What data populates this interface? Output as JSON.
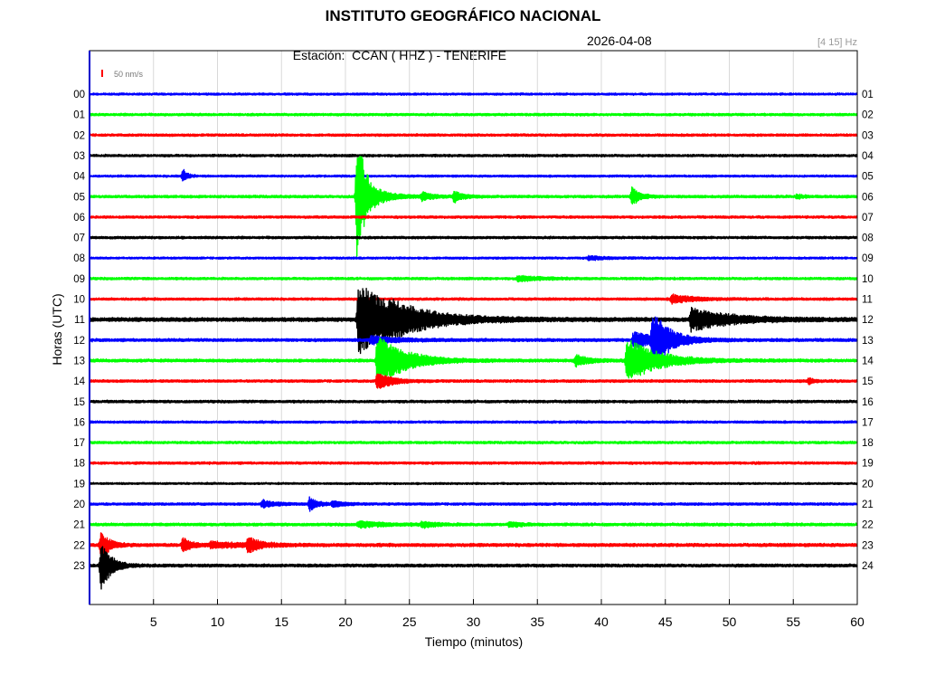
{
  "header": {
    "title": "INSTITUTO GEOGRÁFICO NACIONAL",
    "station_label": "Estación:",
    "station": "CCAN ( HHZ ) - TENERIFE",
    "date": "2026-04-08",
    "band": "[4 15] Hz"
  },
  "scale": {
    "label": "50 nm/s",
    "color": "#ff0000"
  },
  "chart_data": {
    "type": "line",
    "xlabel": "Tiempo (minutos)",
    "ylabel": "Horas (UTC)",
    "xlim": [
      0,
      60
    ],
    "x_ticks": [
      5,
      10,
      15,
      20,
      25,
      30,
      35,
      40,
      45,
      50,
      55,
      60
    ],
    "grid": true,
    "colors": [
      "#0000ff",
      "#00ff00",
      "#ff0000",
      "#000000"
    ],
    "left_labels": [
      "00",
      "01",
      "02",
      "03",
      "04",
      "05",
      "06",
      "07",
      "08",
      "09",
      "10",
      "11",
      "12",
      "13",
      "14",
      "15",
      "16",
      "17",
      "18",
      "19",
      "20",
      "21",
      "22",
      "23"
    ],
    "right_labels": [
      "01",
      "02",
      "03",
      "04",
      "05",
      "06",
      "07",
      "08",
      "09",
      "10",
      "11",
      "12",
      "13",
      "14",
      "15",
      "16",
      "17",
      "18",
      "19",
      "20",
      "21",
      "22",
      "23",
      "24"
    ],
    "traces": [
      {
        "hour": 0,
        "base": 1.0,
        "events": []
      },
      {
        "hour": 1,
        "base": 1.2,
        "events": []
      },
      {
        "hour": 2,
        "base": 1.2,
        "events": []
      },
      {
        "hour": 3,
        "base": 1.2,
        "events": []
      },
      {
        "hour": 4,
        "base": 1.0,
        "events": [
          {
            "t": 7.3,
            "amp": 8,
            "dur": 0.3
          }
        ]
      },
      {
        "hour": 5,
        "base": 1.3,
        "events": [
          {
            "t": 20.9,
            "amp": 70,
            "dur": 0.6
          },
          {
            "t": 21.3,
            "amp": 9,
            "dur": 1.6
          },
          {
            "t": 26.0,
            "amp": 4,
            "dur": 0.8
          },
          {
            "t": 28.5,
            "amp": 6,
            "dur": 0.6
          },
          {
            "t": 42.4,
            "amp": 10,
            "dur": 0.6
          },
          {
            "t": 55.3,
            "amp": 3,
            "dur": 0.4
          }
        ]
      },
      {
        "hour": 6,
        "base": 1.2,
        "events": []
      },
      {
        "hour": 7,
        "base": 1.2,
        "events": []
      },
      {
        "hour": 8,
        "base": 1.0,
        "events": [
          {
            "t": 39.0,
            "amp": 2,
            "dur": 1.5
          }
        ]
      },
      {
        "hour": 9,
        "base": 1.2,
        "events": [
          {
            "t": 33.5,
            "amp": 3,
            "dur": 1.5
          }
        ]
      },
      {
        "hour": 10,
        "base": 1.2,
        "events": [
          {
            "t": 45.5,
            "amp": 5,
            "dur": 1.5
          }
        ]
      },
      {
        "hour": 11,
        "base": 2.0,
        "events": [
          {
            "t": 21.0,
            "amp": 40,
            "dur": 3.0
          },
          {
            "t": 23.5,
            "amp": 5,
            "dur": 4.0
          },
          {
            "t": 47.0,
            "amp": 12,
            "dur": 3.0
          }
        ]
      },
      {
        "hour": 12,
        "base": 1.5,
        "events": [
          {
            "t": 44.0,
            "amp": 30,
            "dur": 1.2
          },
          {
            "t": 42.5,
            "amp": 8,
            "dur": 2.0
          },
          {
            "t": 22.0,
            "amp": 4,
            "dur": 2.0
          }
        ]
      },
      {
        "hour": 13,
        "base": 1.5,
        "events": [
          {
            "t": 22.5,
            "amp": 30,
            "dur": 2.0
          },
          {
            "t": 42.0,
            "amp": 25,
            "dur": 2.2
          },
          {
            "t": 38.0,
            "amp": 6,
            "dur": 1.0
          }
        ]
      },
      {
        "hour": 14,
        "base": 1.3,
        "events": [
          {
            "t": 22.5,
            "amp": 10,
            "dur": 1.0
          },
          {
            "t": 56.2,
            "amp": 3,
            "dur": 0.4
          }
        ]
      },
      {
        "hour": 15,
        "base": 1.3,
        "events": []
      },
      {
        "hour": 16,
        "base": 1.1,
        "events": []
      },
      {
        "hour": 17,
        "base": 1.2,
        "events": []
      },
      {
        "hour": 18,
        "base": 1.2,
        "events": []
      },
      {
        "hour": 19,
        "base": 0.9,
        "events": []
      },
      {
        "hour": 20,
        "base": 1.2,
        "events": [
          {
            "t": 13.5,
            "amp": 4,
            "dur": 1.0
          },
          {
            "t": 17.2,
            "amp": 7,
            "dur": 0.6
          },
          {
            "t": 19.0,
            "amp": 3,
            "dur": 1.0
          }
        ]
      },
      {
        "hour": 21,
        "base": 1.4,
        "events": [
          {
            "t": 21.0,
            "amp": 3,
            "dur": 2.0
          },
          {
            "t": 26.0,
            "amp": 3,
            "dur": 1.0
          },
          {
            "t": 32.8,
            "amp": 3,
            "dur": 0.8
          }
        ]
      },
      {
        "hour": 22,
        "base": 1.6,
        "events": [
          {
            "t": 0.9,
            "amp": 16,
            "dur": 0.6
          },
          {
            "t": 7.3,
            "amp": 8,
            "dur": 0.6
          },
          {
            "t": 12.4,
            "amp": 8,
            "dur": 0.8
          },
          {
            "t": 9.5,
            "amp": 3,
            "dur": 3.0
          }
        ]
      },
      {
        "hour": 23,
        "base": 1.5,
        "events": [
          {
            "t": 0.9,
            "amp": 28,
            "dur": 0.7
          }
        ]
      }
    ]
  }
}
